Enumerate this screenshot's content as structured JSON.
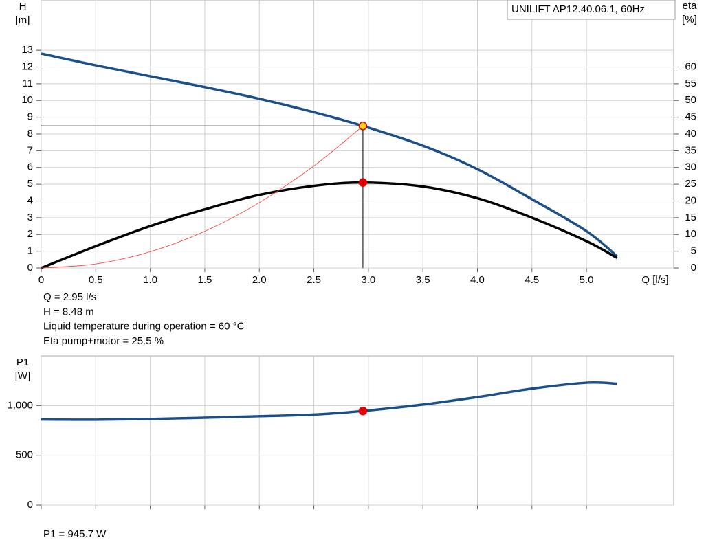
{
  "chart_data": [
    {
      "type": "line",
      "legend_title": "UNILIFT AP12.40.06.1, 60Hz",
      "y_label": "H",
      "y_unit": "[m]",
      "y2_label": "eta",
      "y2_unit": "[%]",
      "x_label": "Q [l/s]",
      "xlim": [
        0,
        5.8
      ],
      "ylim": [
        0,
        16
      ],
      "y2lim": [
        0,
        80
      ],
      "xticks": [
        0,
        0.5,
        {
          "value": 1,
          "label": "1.0"
        },
        1.5,
        {
          "value": 2,
          "label": "2.0"
        },
        2.5,
        {
          "value": 3,
          "label": "3.0"
        },
        3.5,
        {
          "value": 4,
          "label": "4.0"
        },
        4.5,
        {
          "value": 5,
          "label": "5.0"
        }
      ],
      "yticks": [
        0,
        1,
        2,
        3,
        4,
        5,
        6,
        7,
        8,
        9,
        10,
        11,
        12,
        13
      ],
      "y2ticks": [
        0,
        5,
        10,
        15,
        20,
        25,
        30,
        35,
        40,
        45,
        50,
        55,
        60
      ],
      "grid": true,
      "series": [
        {
          "name": "H",
          "color": "#1a4f8a",
          "line_width": 3.5,
          "x": [
            0,
            0.5,
            1,
            1.5,
            2,
            2.5,
            2.95,
            3.5,
            4,
            4.5,
            5,
            5.28
          ],
          "values": [
            12.8,
            12.1,
            11.45,
            10.8,
            10.1,
            9.3,
            8.48,
            7.3,
            5.9,
            4.1,
            2.2,
            0.7
          ]
        },
        {
          "name": "eta",
          "color": "#000000",
          "line_width": 3.5,
          "axis": "y2",
          "x": [
            0,
            0.5,
            1,
            1.5,
            2,
            2.5,
            2.95,
            3.5,
            4,
            4.5,
            5,
            5.28
          ],
          "values": [
            0,
            6.5,
            12.5,
            17.5,
            21.8,
            24.5,
            25.5,
            24.3,
            20.8,
            15,
            8,
            3
          ]
        },
        {
          "name": "system",
          "color": "#ff3030",
          "line_width": 0.8,
          "x": [
            0,
            0.5,
            1,
            1.5,
            2,
            2.5,
            2.95
          ],
          "values": [
            0,
            0.24,
            0.97,
            2.19,
            3.9,
            6.09,
            8.48
          ]
        }
      ],
      "markers": [
        {
          "x": 2.95,
          "y": 8.48,
          "color": "#ffd21a",
          "edge": "#e00000",
          "crosshair": true
        },
        {
          "x": 2.95,
          "y": 25.5,
          "axis": "y2",
          "color": "#e00000",
          "edge": "#e00000"
        }
      ],
      "info": [
        "Q = 2.95 l/s",
        "H = 8.48 m",
        "Liquid temperature during operation = 60 °C",
        "Eta pump+motor = 25.5 %"
      ]
    },
    {
      "type": "line",
      "y_label": "P1",
      "y_unit": "[W]",
      "xlim": [
        0,
        5.8
      ],
      "ylim": [
        0,
        1500
      ],
      "xticks": [
        0,
        0.5,
        1,
        1.5,
        2,
        2.5,
        3,
        3.5,
        4,
        4.5,
        5
      ],
      "show_xtick_labels": false,
      "yticks": [
        0,
        500,
        {
          "value": 1000,
          "label": "1,000"
        }
      ],
      "grid": true,
      "series": [
        {
          "name": "P1",
          "color": "#1a4f8a",
          "line_width": 3.5,
          "x": [
            0,
            0.5,
            1,
            1.5,
            2,
            2.5,
            2.95,
            3.5,
            4,
            4.5,
            5,
            5.28
          ],
          "values": [
            860,
            858,
            865,
            878,
            893,
            910,
            945.7,
            1010,
            1085,
            1170,
            1230,
            1220
          ]
        }
      ],
      "markers": [
        {
          "x": 2.95,
          "y": 945.7,
          "color": "#e00000",
          "edge": "#e00000"
        }
      ],
      "info": [
        "P1 = 945.7 W"
      ]
    }
  ]
}
